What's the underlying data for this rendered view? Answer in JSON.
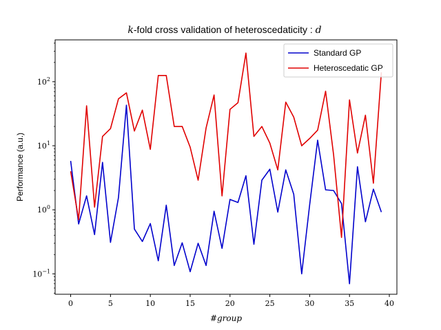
{
  "chart_data": {
    "type": "line",
    "title": "k-fold cross validation of heteroscedaticity : d",
    "title_parts": {
      "k": "k",
      "main": "-fold cross validation of heteroscedaticity : ",
      "d": "d"
    },
    "xlabel": "#group",
    "ylabel": "Performance (a.u.)",
    "yscale": "log",
    "xlim": [
      -1.95,
      40.95
    ],
    "ylim": [
      0.048,
      450
    ],
    "xticks": [
      0,
      5,
      10,
      15,
      20,
      25,
      30,
      35,
      40
    ],
    "xtick_labels": [
      "0",
      "5",
      "10",
      "15",
      "20",
      "25",
      "30",
      "35",
      "40"
    ],
    "yticks": [
      {
        "value": 0.1,
        "base": "10",
        "exp": "−1"
      },
      {
        "value": 1,
        "base": "10",
        "exp": "0"
      },
      {
        "value": 10,
        "base": "10",
        "exp": "1"
      },
      {
        "value": 100,
        "base": "10",
        "exp": "2"
      }
    ],
    "legend_position": "top-right",
    "grid": false,
    "x": [
      0,
      1,
      2,
      3,
      4,
      5,
      6,
      7,
      8,
      9,
      10,
      11,
      12,
      13,
      14,
      15,
      16,
      17,
      18,
      19,
      20,
      21,
      22,
      23,
      24,
      25,
      26,
      27,
      28,
      29,
      30,
      31,
      32,
      33,
      34,
      35,
      36,
      37,
      38,
      39
    ],
    "series": [
      {
        "name": "Standard GP",
        "color": "#0000cc",
        "values": [
          5.8,
          0.6,
          1.65,
          0.41,
          5.5,
          0.31,
          1.55,
          43,
          0.5,
          0.32,
          0.61,
          0.16,
          1.18,
          0.135,
          0.305,
          0.108,
          0.3,
          0.135,
          0.95,
          0.25,
          1.45,
          1.3,
          3.4,
          0.29,
          2.9,
          4.3,
          0.92,
          4.2,
          1.75,
          0.1,
          1.2,
          12.2,
          2.05,
          2.0,
          1.25,
          0.07,
          4.7,
          0.65,
          2.1,
          0.92
        ]
      },
      {
        "name": "Heteroscedatic GP",
        "color": "#e00000",
        "values": [
          4.0,
          0.7,
          42,
          1.1,
          14,
          18.5,
          54,
          67,
          17,
          36,
          8.8,
          125,
          125,
          20,
          20,
          9.5,
          2.9,
          19,
          62,
          1.65,
          37,
          47,
          280,
          14,
          20,
          11,
          4.2,
          48,
          28,
          10,
          13,
          17.5,
          71,
          7.3,
          0.37,
          52,
          7.7,
          30,
          2.6,
          140
        ]
      }
    ]
  }
}
